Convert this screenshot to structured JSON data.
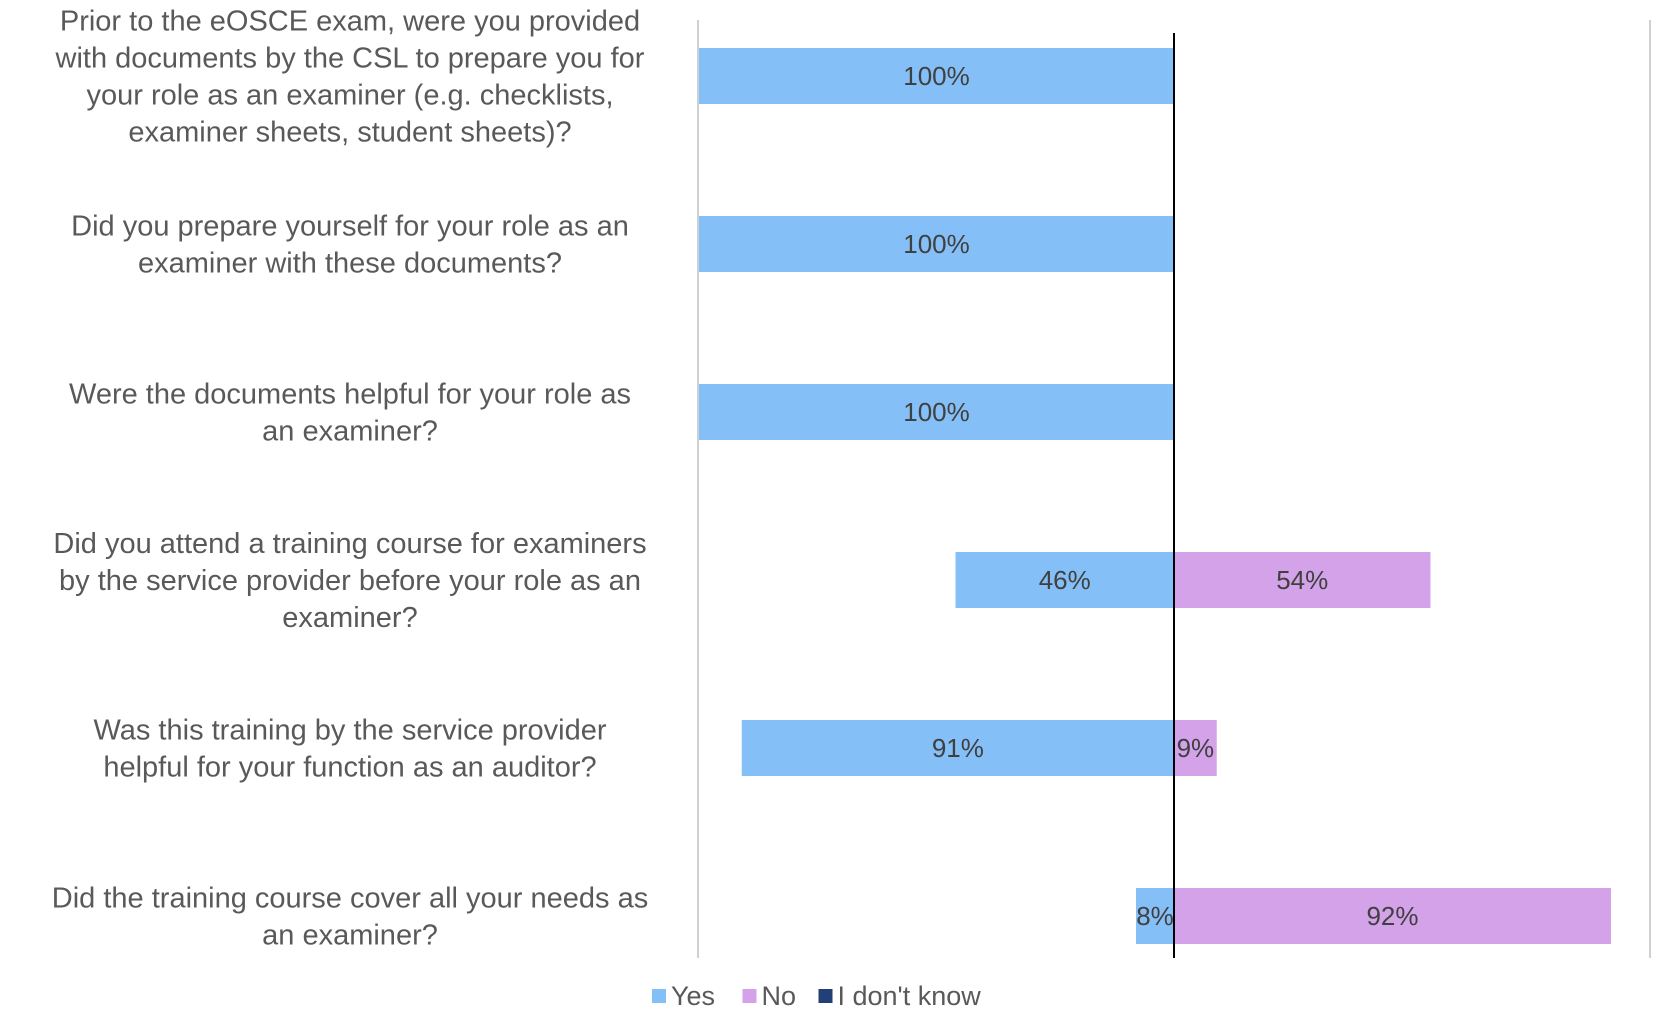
{
  "chart_data": {
    "type": "bar",
    "orientation": "horizontal",
    "stacked": "diverging",
    "categories": [
      "Prior to the eOSCE exam, were you provided with documents by the CSL to prepare you for your role as an examiner (e.g. checklists, examiner sheets, student sheets)?",
      "Did you prepare yourself for your role as an examiner with these documents?",
      "Were the documents helpful for your role as an examiner?",
      "Did you attend a training course for examiners by the service provider before your role as an examiner?",
      "Was this training by the service provider helpful for your function as an auditor?",
      "Did the training course cover all your needs as an examiner?"
    ],
    "category_lines": [
      [
        "Prior to the eOSCE exam, were you provided",
        "with documents by the CSL to prepare you for",
        "your role as an examiner (e.g. checklists,",
        "examiner sheets, student sheets)?"
      ],
      [
        "Did you prepare yourself for your role as an",
        "examiner with these documents?"
      ],
      [
        "Were the documents helpful for your role as",
        "an examiner?"
      ],
      [
        "Did you attend a training course for examiners",
        "by the service provider before your role as an",
        "examiner?"
      ],
      [
        "Was this training by the service provider",
        "helpful for your function as an auditor?"
      ],
      [
        "Did the training course cover all your needs as",
        "an examiner?"
      ]
    ],
    "series": [
      {
        "name": "Yes",
        "values": [
          100,
          100,
          100,
          46,
          91,
          8
        ],
        "labels": [
          "100%",
          "100%",
          "100%",
          "46%",
          "91%",
          "8%"
        ],
        "color": "#85BFF7",
        "side": "left"
      },
      {
        "name": "No",
        "values": [
          0,
          0,
          0,
          54,
          9,
          92
        ],
        "labels": [
          "",
          "",
          "",
          "54%",
          "9%",
          "92%"
        ],
        "color": "#D3A2E8",
        "side": "right"
      },
      {
        "name": "I don't know",
        "values": [
          0,
          0,
          0,
          0,
          0,
          0
        ],
        "labels": [
          "",
          "",
          "",
          "",
          "",
          ""
        ],
        "color": "#233F78",
        "side": "right"
      }
    ],
    "xlim": [
      -100,
      100
    ],
    "grid": false,
    "legend_position": "bottom",
    "title": "",
    "xlabel": "",
    "ylabel": ""
  }
}
